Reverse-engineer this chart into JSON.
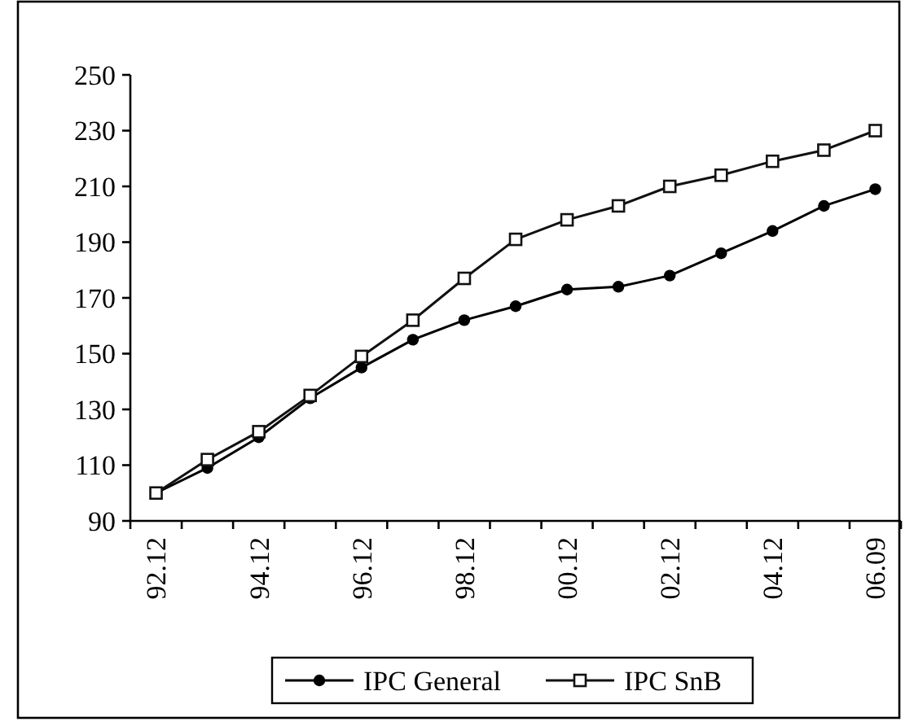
{
  "chart_data": {
    "type": "line",
    "categories": [
      "92.12",
      null,
      "94.12",
      null,
      "96.12",
      null,
      "98.12",
      null,
      "00.12",
      null,
      "02.12",
      null,
      "04.12",
      null,
      "06.09"
    ],
    "series": [
      {
        "name": "IPC General",
        "color": "#000000",
        "marker": "circle",
        "values": [
          100,
          109,
          120,
          134,
          145,
          155,
          162,
          167,
          173,
          174,
          178,
          186,
          194,
          203,
          209
        ]
      },
      {
        "name": "IPC SnB",
        "color": "#111111",
        "marker": "square",
        "values": [
          100,
          112,
          122,
          135,
          149,
          162,
          177,
          191,
          198,
          203,
          210,
          214,
          219,
          223,
          230
        ]
      }
    ],
    "ylim": [
      90,
      250
    ],
    "yticks": [
      90,
      110,
      130,
      150,
      170,
      190,
      210,
      230,
      250
    ],
    "grid": false,
    "legend": "bottom",
    "line_style": "solid"
  }
}
